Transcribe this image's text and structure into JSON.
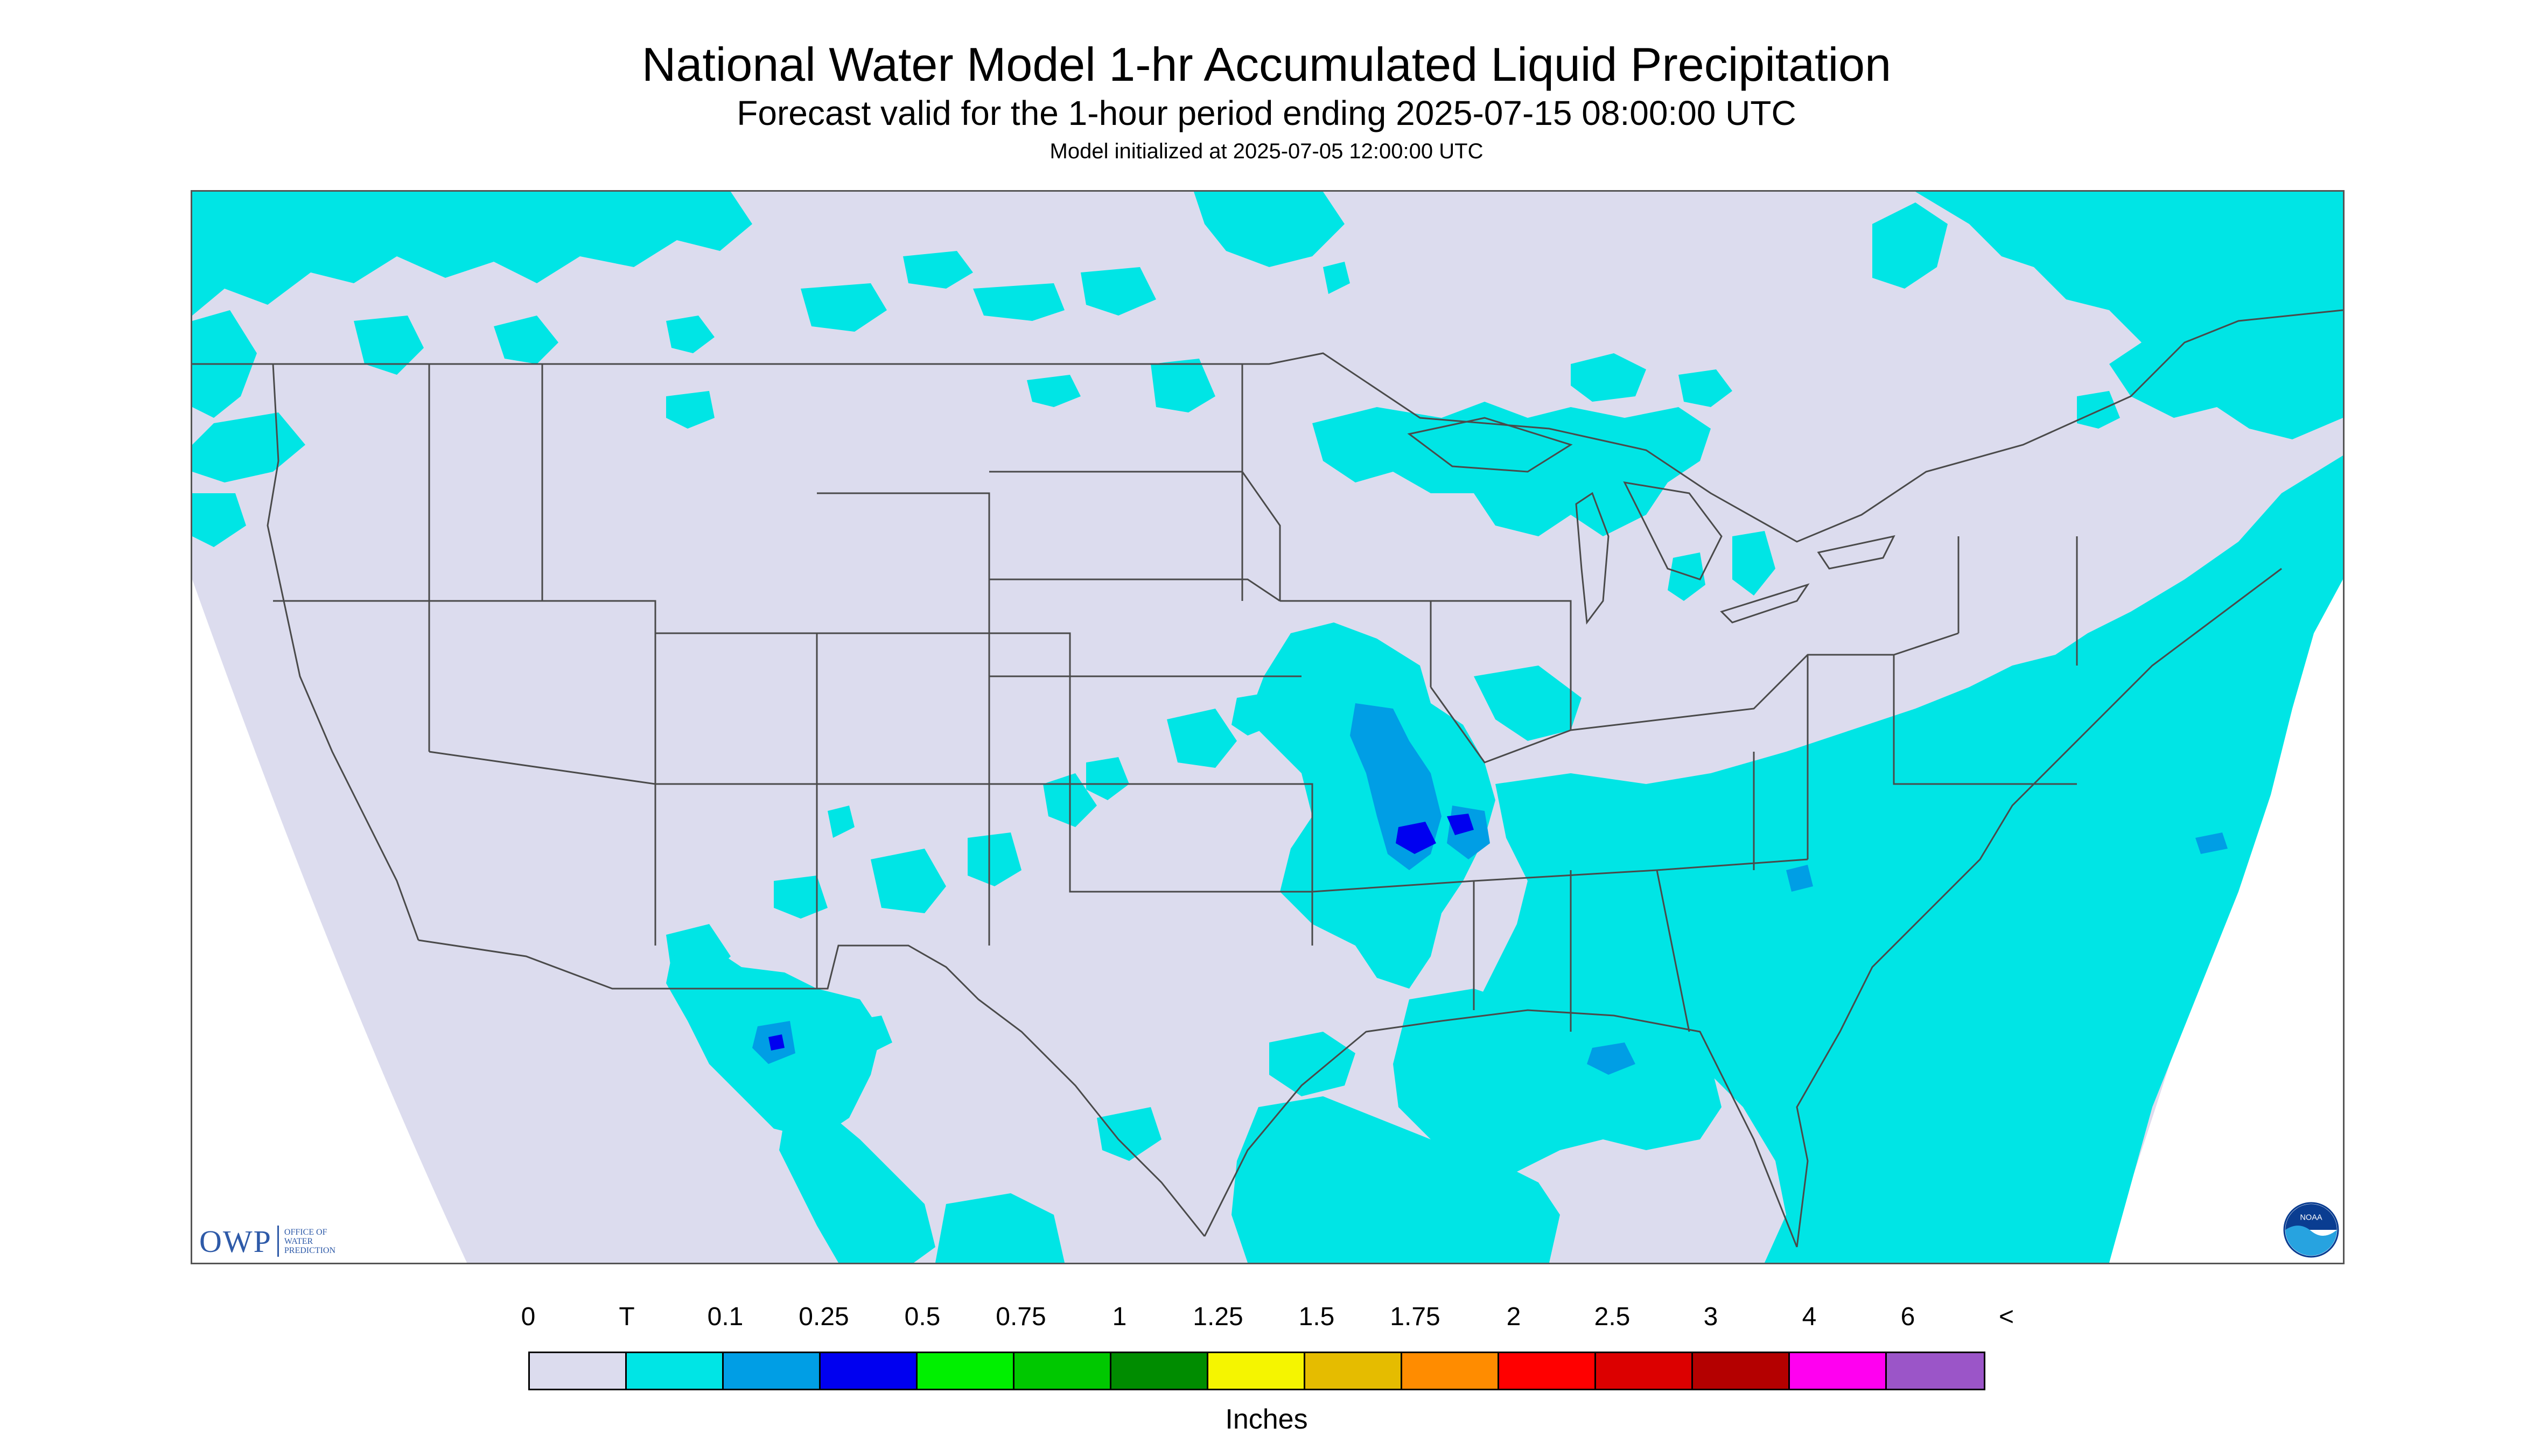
{
  "header": {
    "title": "National Water Model 1-hr Accumulated Liquid Precipitation",
    "subtitle": "Forecast valid for the 1-hour period ending 2025-07-15 08:00:00 UTC",
    "init_line": "Model initialized at 2025-07-05 12:00:00 UTC"
  },
  "map": {
    "domain_color": "#dcdcee",
    "outside_color": "#ffffff",
    "boundary_color": "#4a4a4a",
    "precip_colors": {
      "trace": "#00e5e5",
      "p0_1": "#009ee5",
      "p0_25": "#0000f0"
    }
  },
  "logos": {
    "owp_text": "OWP",
    "owp_subtext": "OFFICE OF WATER PREDICTION",
    "noaa_text": "NOAA"
  },
  "legend": {
    "labels": [
      "0",
      "T",
      "0.1",
      "0.25",
      "0.5",
      "0.75",
      "1",
      "1.25",
      "1.5",
      "1.75",
      "2",
      "2.5",
      "3",
      "4",
      "6",
      "<"
    ],
    "colors": [
      "#dcdcee",
      "#00e5e5",
      "#009ee5",
      "#0000f0",
      "#00f000",
      "#00c800",
      "#008c00",
      "#f5f500",
      "#e5bc00",
      "#ff8c00",
      "#ff0000",
      "#dc0000",
      "#b40000",
      "#ff00f0",
      "#9b55c8"
    ],
    "units": "Inches"
  }
}
